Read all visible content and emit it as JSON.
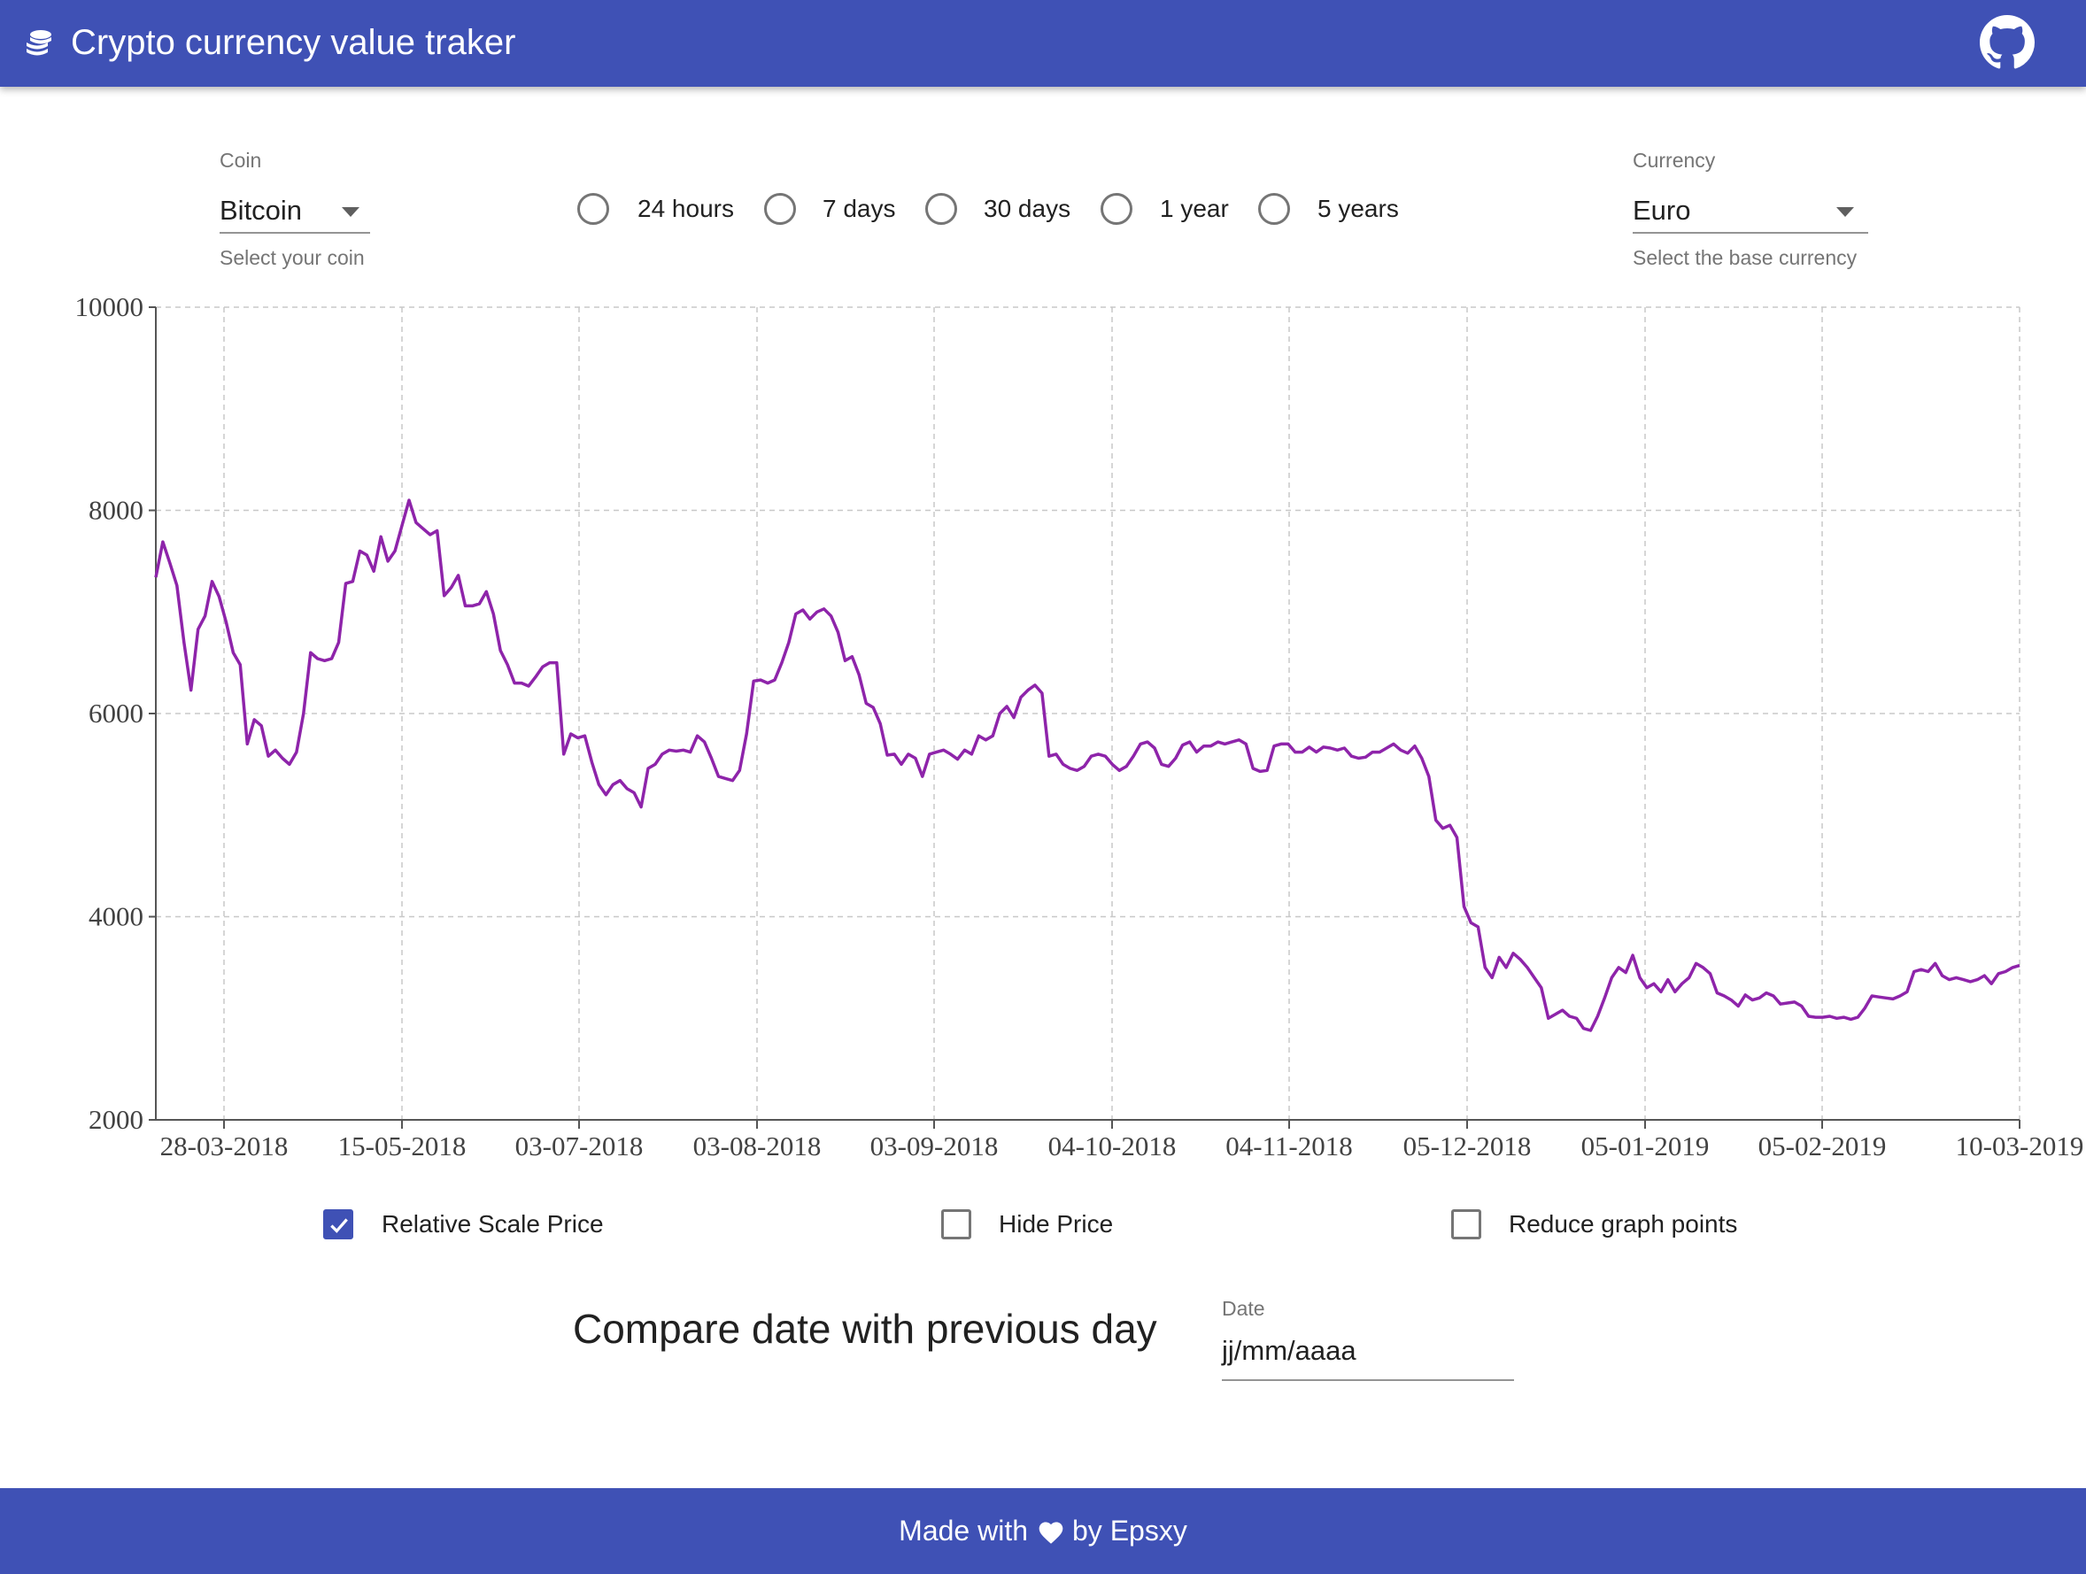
{
  "app": {
    "title": "Crypto currency value traker"
  },
  "controls": {
    "coin": {
      "label": "Coin",
      "value": "Bitcoin",
      "helper": "Select your coin"
    },
    "currency": {
      "label": "Currency",
      "value": "Euro",
      "helper": "Select the base currency"
    },
    "periods": [
      {
        "label": "24 hours",
        "selected": false
      },
      {
        "label": "7 days",
        "selected": false
      },
      {
        "label": "30 days",
        "selected": false
      },
      {
        "label": "1 year",
        "selected": true
      },
      {
        "label": "5 years",
        "selected": false
      }
    ]
  },
  "chart_data": {
    "type": "line",
    "title": "",
    "xlabel": "",
    "ylabel": "",
    "ylim": [
      2000,
      10000
    ],
    "yticks": [
      2000,
      4000,
      6000,
      8000,
      10000
    ],
    "xticks": [
      "28-03-2018",
      "15-05-2018",
      "03-07-2018",
      "03-08-2018",
      "03-09-2018",
      "04-10-2018",
      "04-11-2018",
      "05-12-2018",
      "05-01-2019",
      "05-02-2019",
      "10-03-2019"
    ],
    "grid": true,
    "line_color": "#8e24aa",
    "series": [
      {
        "values": [
          7340,
          7690,
          7480,
          7260,
          6700,
          6230,
          6830,
          6960,
          7300,
          7150,
          6900,
          6600,
          6480,
          5700,
          5940,
          5880,
          5580,
          5640,
          5560,
          5500,
          5620,
          6000,
          6600,
          6540,
          6520,
          6540,
          6700,
          7280,
          7300,
          7600,
          7560,
          7400,
          7740,
          7500,
          7600,
          7850,
          8100,
          7880,
          7820,
          7760,
          7800,
          7160,
          7240,
          7360,
          7060,
          7060,
          7080,
          7200,
          6980,
          6620,
          6480,
          6300,
          6300,
          6270,
          6360,
          6460,
          6500,
          6500,
          5600,
          5800,
          5760,
          5780,
          5520,
          5300,
          5200,
          5300,
          5340,
          5260,
          5220,
          5080,
          5460,
          5500,
          5600,
          5640,
          5630,
          5640,
          5620,
          5780,
          5720,
          5560,
          5380,
          5360,
          5340,
          5440,
          5800,
          6320,
          6330,
          6300,
          6330,
          6500,
          6700,
          6980,
          7020,
          6930,
          7000,
          7030,
          6960,
          6800,
          6520,
          6560,
          6380,
          6100,
          6060,
          5900,
          5590,
          5600,
          5500,
          5600,
          5560,
          5380,
          5600,
          5620,
          5640,
          5600,
          5550,
          5640,
          5600,
          5780,
          5740,
          5780,
          6000,
          6070,
          5960,
          6160,
          6230,
          6280,
          6200,
          5580,
          5600,
          5500,
          5460,
          5440,
          5480,
          5580,
          5600,
          5580,
          5500,
          5440,
          5480,
          5580,
          5700,
          5720,
          5660,
          5500,
          5480,
          5560,
          5690,
          5720,
          5620,
          5680,
          5680,
          5720,
          5700,
          5720,
          5740,
          5700,
          5460,
          5430,
          5440,
          5680,
          5700,
          5700,
          5620,
          5620,
          5670,
          5620,
          5670,
          5660,
          5640,
          5660,
          5580,
          5560,
          5570,
          5620,
          5620,
          5660,
          5700,
          5640,
          5610,
          5680,
          5560,
          5380,
          4950,
          4870,
          4900,
          4780,
          4100,
          3940,
          3900,
          3500,
          3400,
          3600,
          3500,
          3640,
          3580,
          3500,
          3400,
          3300,
          3000,
          3040,
          3080,
          3020,
          3000,
          2900,
          2880,
          3020,
          3200,
          3400,
          3500,
          3450,
          3620,
          3400,
          3300,
          3340,
          3260,
          3380,
          3260,
          3340,
          3400,
          3540,
          3500,
          3440,
          3250,
          3220,
          3180,
          3120,
          3230,
          3180,
          3200,
          3250,
          3220,
          3140,
          3150,
          3160,
          3120,
          3020,
          3010,
          3010,
          3020,
          3000,
          3010,
          2990,
          3010,
          3100,
          3220,
          3210,
          3200,
          3190,
          3220,
          3260,
          3460,
          3480,
          3460,
          3540,
          3420,
          3380,
          3400,
          3380,
          3360,
          3380,
          3420,
          3340,
          3440,
          3460,
          3500,
          3520
        ]
      }
    ]
  },
  "options": [
    {
      "label": "Relative Scale Price",
      "checked": true
    },
    {
      "label": "Hide Price",
      "checked": false
    },
    {
      "label": "Reduce graph points",
      "checked": false
    }
  ],
  "compare": {
    "title": "Compare date with previous day",
    "date_label": "Date",
    "date_placeholder": "jj/mm/aaaa"
  },
  "footer": {
    "made_with": "Made with",
    "by": "by Epsxy"
  }
}
